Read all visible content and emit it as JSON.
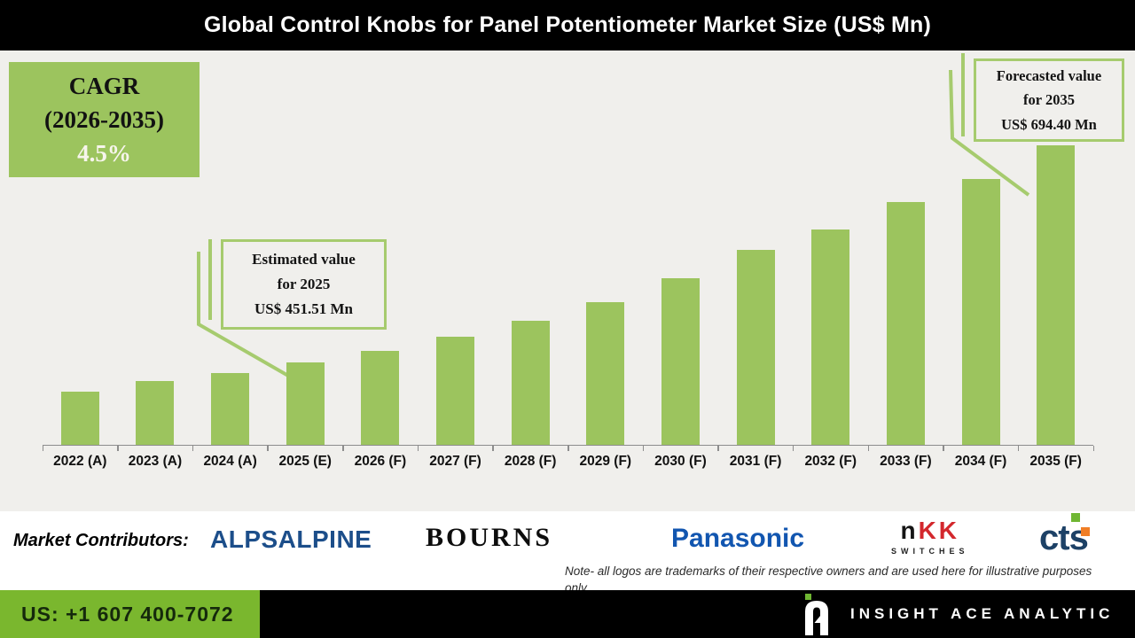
{
  "title": "Global Control Knobs for Panel Potentiometer Market Size (US$ Mn)",
  "cagr_box": {
    "line1": "CAGR",
    "line2": "(2026-2035)",
    "value": "4.5%"
  },
  "callouts": {
    "estimated": {
      "line1": "Estimated value",
      "line2": "for 2025",
      "line3": "US$ 451.51 Mn"
    },
    "forecast": {
      "line1": "Forecasted value",
      "line2": "for 2035",
      "line3": "US$ 694.40 Mn"
    }
  },
  "chart_data": {
    "type": "bar",
    "title": "Global Control Knobs for Panel Potentiometer Market Size (US$ Mn)",
    "categories": [
      "2022 (A)",
      "2023 (A)",
      "2024 (A)",
      "2025 (E)",
      "2026 (F)",
      "2027 (F)",
      "2028 (F)",
      "2029 (F)",
      "2030 (F)",
      "2031 (F)",
      "2032 (F)",
      "2033 (F)",
      "2034 (F)",
      "2035 (F)"
    ],
    "values": [
      419,
      431.5,
      440.5,
      451.51,
      465,
      480.5,
      498,
      519.5,
      546,
      577.5,
      600.5,
      630.5,
      656.5,
      694.4
    ],
    "xlabel": "",
    "ylabel": "",
    "ylim": [
      360,
      800
    ],
    "grid": false,
    "legend": false,
    "bar_color": "#9cc45e",
    "annotations": [
      {
        "category": "2025 (E)",
        "value": 451.51,
        "label": "Estimated value for 2025 US$ 451.51 Mn"
      },
      {
        "category": "2035 (F)",
        "value": 694.4,
        "label": "Forecasted value for 2035 US$ 694.40 Mn"
      }
    ],
    "cagr": {
      "period": "2026-2035",
      "value_pct": 4.5
    }
  },
  "contributors": {
    "label": "Market Contributors:",
    "logos": {
      "alps": "ALPSALPINE",
      "bourns": "BOURNS",
      "panasonic": "Panasonic",
      "nkk_n": "n",
      "nkk_kk": "KK",
      "nkk_sub": "SWITCHES",
      "cts": "cts"
    }
  },
  "note": {
    "line1": "Note- all logos are trademarks of their respective owners and are used here for illustrative purposes",
    "line2": "only."
  },
  "footer": {
    "phone": "US: +1 607 400-7072",
    "brand": "INSIGHT ACE ANALYTIC"
  },
  "colors": {
    "bar_green": "#9cc45e",
    "accent_border": "#a6cb6e",
    "footer_green": "#7ab72e",
    "banner_black": "#000000",
    "chart_bg": "#f0efec",
    "alps_navy": "#1c4e8a",
    "panasonic_blue": "#1256b0",
    "nkk_red": "#d3282d",
    "cts_navy": "#1d4166",
    "cts_green": "#6fb632",
    "cts_orange": "#f07e26"
  }
}
